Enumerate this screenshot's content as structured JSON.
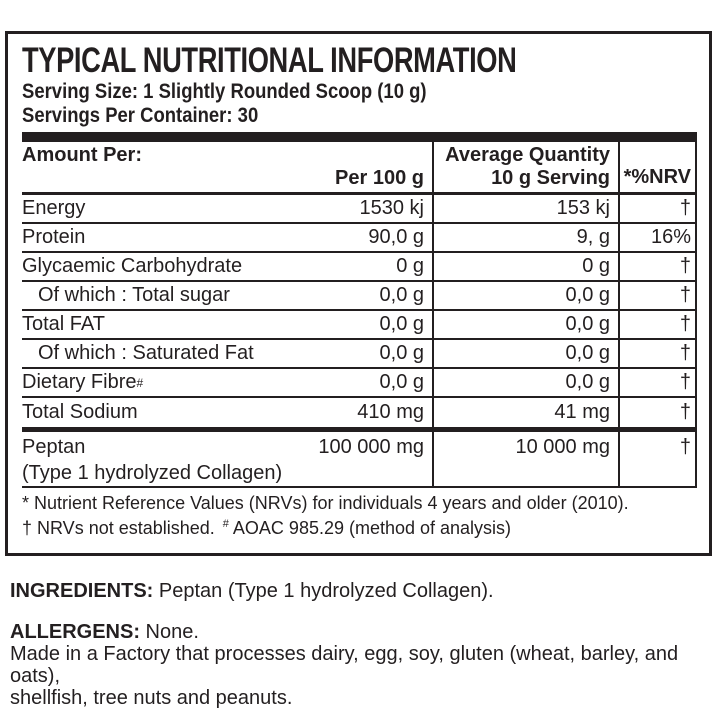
{
  "label": {
    "title": "TYPICAL NUTRITIONAL INFORMATION",
    "serving_size": "Serving Size: 1 Slightly Rounded Scoop (10 g)",
    "servings_per_container": "Servings Per Container: 30"
  },
  "table": {
    "header": {
      "col1_line1": "Amount Per:",
      "col1_line2": "Per 100 g",
      "col2_line1": "Average Quantity",
      "col2_line2": "10 g Serving",
      "col3": "*%NRV"
    },
    "rows": [
      {
        "name": "Energy",
        "per100": "1530 kj",
        "serving": "153 kj",
        "nrv": "†"
      },
      {
        "name": "Protein",
        "per100": "90,0 g",
        "serving": "9, g",
        "nrv": "16%"
      },
      {
        "name": "Glycaemic Carbohydrate",
        "per100": "0 g",
        "serving": "0 g",
        "nrv": "†"
      },
      {
        "name": "Of which : Total sugar",
        "per100": "0,0 g",
        "serving": "0,0 g",
        "nrv": "†"
      },
      {
        "name": "Total FAT",
        "per100": "0,0 g",
        "serving": "0,0 g",
        "nrv": "†"
      },
      {
        "name": "Of which : Saturated Fat",
        "per100": "0,0 g",
        "serving": "0,0 g",
        "nrv": "†"
      },
      {
        "name": "Dietary Fibre",
        "sup": "#",
        "per100": "0,0 g",
        "serving": "0,0 g",
        "nrv": "†"
      },
      {
        "name": "Total Sodium",
        "per100": "410 mg",
        "serving": "41 mg",
        "nrv": "†"
      }
    ],
    "peptan_row": {
      "name": "Peptan",
      "subname": "(Type 1 hydrolyzed Collagen)",
      "per100": "100 000 mg",
      "serving": "10 000 mg",
      "nrv": "†"
    },
    "footnotes": {
      "line1": "* Nutrient Reference Values (NRVs) for individuals 4 years and older (2010).",
      "line2_a": "† NRVs not established.",
      "line2_sup": "#",
      "line2_b": " AOAC 985.29 (method of analysis)"
    }
  },
  "ingredients": {
    "label": "INGREDIENTS:",
    "text": " Peptan (Type 1 hydrolyzed Collagen)."
  },
  "allergens": {
    "label": "ALLERGENS:",
    "text": " None.",
    "line2": "Made in a Factory that processes dairy, egg, soy, gluten (wheat, barley, and oats),",
    "line3": "shellfish, tree nuts and peanuts."
  },
  "colors": {
    "ink": "#231f20",
    "background": "#ffffff"
  }
}
